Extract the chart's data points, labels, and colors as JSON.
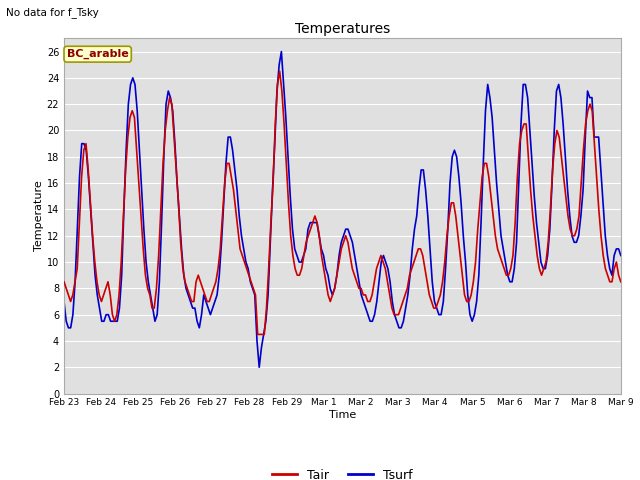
{
  "title": "Temperatures",
  "xlabel": "Time",
  "ylabel": "Temperature",
  "topleft_text": "No data for f_Tsky",
  "legend_label": "BC_arable",
  "ylim": [
    0,
    27
  ],
  "yticks": [
    0,
    2,
    4,
    6,
    8,
    10,
    12,
    14,
    16,
    18,
    20,
    22,
    24,
    26
  ],
  "bg_color": "#f0f0f0",
  "plot_bg_color": "#e0e0e0",
  "grid_color": "#ffffff",
  "line_tair_color": "#cc0000",
  "line_tsurf_color": "#0000cc",
  "line_width": 1.2,
  "xtick_labels": [
    "Feb 23",
    "Feb 24",
    "Feb 25",
    "Feb 26",
    "Feb 27",
    "Feb 28",
    "Feb 29",
    "Mar 1",
    "Mar 2",
    "Mar 3",
    "Mar 4",
    "Mar 5",
    "Mar 6",
    "Mar 7",
    "Mar 8",
    "Mar 9"
  ],
  "tair_values": [
    8.5,
    8.0,
    7.5,
    7.0,
    7.5,
    8.5,
    9.5,
    13.0,
    16.5,
    18.5,
    19.0,
    17.0,
    14.5,
    12.0,
    10.0,
    8.5,
    7.5,
    7.0,
    7.5,
    8.0,
    8.5,
    7.5,
    6.0,
    5.5,
    6.0,
    7.5,
    10.0,
    13.5,
    17.0,
    19.5,
    21.0,
    21.5,
    21.0,
    18.5,
    16.0,
    13.5,
    11.0,
    9.0,
    8.0,
    7.5,
    6.5,
    6.5,
    8.0,
    10.5,
    14.0,
    17.5,
    20.0,
    21.5,
    22.5,
    22.0,
    19.5,
    17.0,
    14.5,
    11.5,
    9.5,
    8.5,
    8.0,
    7.5,
    7.0,
    7.0,
    8.5,
    9.0,
    8.5,
    8.0,
    7.5,
    7.0,
    7.0,
    7.5,
    8.0,
    8.5,
    9.5,
    11.0,
    13.5,
    16.0,
    17.5,
    17.5,
    16.5,
    15.5,
    14.0,
    12.5,
    11.0,
    10.5,
    10.0,
    9.5,
    9.0,
    8.5,
    8.0,
    7.5,
    4.5,
    4.5,
    4.5,
    4.5,
    6.5,
    9.5,
    13.0,
    16.0,
    20.5,
    23.5,
    24.5,
    23.0,
    20.5,
    17.5,
    14.5,
    12.0,
    10.5,
    9.5,
    9.0,
    9.0,
    9.5,
    10.5,
    11.5,
    12.0,
    12.5,
    13.0,
    13.5,
    13.0,
    12.0,
    10.5,
    9.5,
    8.5,
    7.5,
    7.0,
    7.5,
    8.0,
    9.0,
    10.0,
    11.0,
    11.5,
    12.0,
    11.5,
    10.5,
    9.5,
    9.0,
    8.5,
    8.0,
    8.0,
    7.5,
    7.5,
    7.0,
    7.0,
    7.5,
    8.5,
    9.5,
    10.0,
    10.5,
    10.0,
    9.5,
    8.5,
    7.5,
    6.5,
    6.0,
    6.0,
    6.0,
    6.5,
    7.0,
    7.5,
    8.0,
    9.0,
    9.5,
    10.0,
    10.5,
    11.0,
    11.0,
    10.5,
    9.5,
    8.5,
    7.5,
    7.0,
    6.5,
    6.5,
    7.0,
    7.5,
    8.5,
    10.0,
    12.0,
    13.5,
    14.5,
    14.5,
    13.5,
    12.0,
    10.5,
    9.0,
    7.5,
    7.0,
    7.0,
    7.5,
    8.5,
    10.0,
    12.5,
    14.5,
    16.5,
    17.5,
    17.5,
    16.5,
    15.0,
    13.5,
    12.0,
    11.0,
    10.5,
    10.0,
    9.5,
    9.0,
    9.0,
    9.5,
    10.5,
    13.0,
    16.5,
    19.0,
    20.0,
    20.5,
    20.5,
    18.0,
    15.5,
    13.5,
    12.0,
    10.5,
    9.5,
    9.0,
    9.5,
    10.0,
    11.5,
    14.0,
    17.0,
    19.0,
    20.0,
    19.5,
    18.0,
    16.5,
    15.0,
    13.5,
    12.5,
    12.0,
    12.0,
    12.5,
    13.5,
    16.0,
    18.5,
    20.5,
    21.5,
    22.0,
    21.5,
    19.0,
    16.5,
    14.0,
    12.0,
    10.5,
    9.5,
    9.0,
    8.5,
    8.5,
    9.5,
    10.0,
    9.0,
    8.5
  ],
  "tsurf_values": [
    7.0,
    5.5,
    5.0,
    5.0,
    6.0,
    8.5,
    12.5,
    16.5,
    19.0,
    19.0,
    18.5,
    16.5,
    14.0,
    11.5,
    9.0,
    7.5,
    6.5,
    5.5,
    5.5,
    6.0,
    6.0,
    5.5,
    5.5,
    5.5,
    5.5,
    6.5,
    9.0,
    14.0,
    18.5,
    22.0,
    23.5,
    24.0,
    23.5,
    21.5,
    18.5,
    15.5,
    12.5,
    10.0,
    8.5,
    7.5,
    6.5,
    5.5,
    6.0,
    8.5,
    13.0,
    18.0,
    22.0,
    23.0,
    22.5,
    21.5,
    19.0,
    16.0,
    13.5,
    11.0,
    9.0,
    8.0,
    7.5,
    7.0,
    6.5,
    6.5,
    5.5,
    5.0,
    6.0,
    7.5,
    7.0,
    6.5,
    6.0,
    6.5,
    7.0,
    7.5,
    9.0,
    11.5,
    14.5,
    17.5,
    19.5,
    19.5,
    18.5,
    17.0,
    15.5,
    13.5,
    12.0,
    11.0,
    10.0,
    9.5,
    8.5,
    8.0,
    7.5,
    4.0,
    2.0,
    3.5,
    4.5,
    5.5,
    7.5,
    11.5,
    15.5,
    19.0,
    23.0,
    25.0,
    26.0,
    23.5,
    21.0,
    18.0,
    15.0,
    12.5,
    11.0,
    10.5,
    10.0,
    10.0,
    10.5,
    11.0,
    12.5,
    13.0,
    13.0,
    13.0,
    13.0,
    12.0,
    11.0,
    10.5,
    9.5,
    9.0,
    8.0,
    7.5,
    8.0,
    9.0,
    10.5,
    11.5,
    12.0,
    12.5,
    12.5,
    12.0,
    11.5,
    10.5,
    9.5,
    8.5,
    7.5,
    7.0,
    6.5,
    6.0,
    5.5,
    5.5,
    6.0,
    7.0,
    8.5,
    10.0,
    10.5,
    10.0,
    9.5,
    8.5,
    7.0,
    6.0,
    5.5,
    5.0,
    5.0,
    5.5,
    6.5,
    7.5,
    9.0,
    11.0,
    12.5,
    13.5,
    15.5,
    17.0,
    17.0,
    15.5,
    13.5,
    11.0,
    8.5,
    7.0,
    6.5,
    6.0,
    6.0,
    7.0,
    9.5,
    12.5,
    16.0,
    18.0,
    18.5,
    18.0,
    16.5,
    14.5,
    12.0,
    10.0,
    7.5,
    6.0,
    5.5,
    6.0,
    7.0,
    9.0,
    13.0,
    17.5,
    21.5,
    23.5,
    22.5,
    21.0,
    18.5,
    16.0,
    14.0,
    12.0,
    11.0,
    10.0,
    9.0,
    8.5,
    8.5,
    9.5,
    11.5,
    16.0,
    20.5,
    23.5,
    23.5,
    22.5,
    20.0,
    17.5,
    15.0,
    13.0,
    11.5,
    10.0,
    9.5,
    9.5,
    10.5,
    12.5,
    16.0,
    20.0,
    23.0,
    23.5,
    22.5,
    20.5,
    18.0,
    15.5,
    13.5,
    12.0,
    11.5,
    11.5,
    12.0,
    13.5,
    15.5,
    19.5,
    23.0,
    22.5,
    22.5,
    19.5,
    19.5,
    19.5,
    17.0,
    14.5,
    12.0,
    10.5,
    9.5,
    9.0,
    10.5,
    11.0,
    11.0,
    10.5
  ]
}
